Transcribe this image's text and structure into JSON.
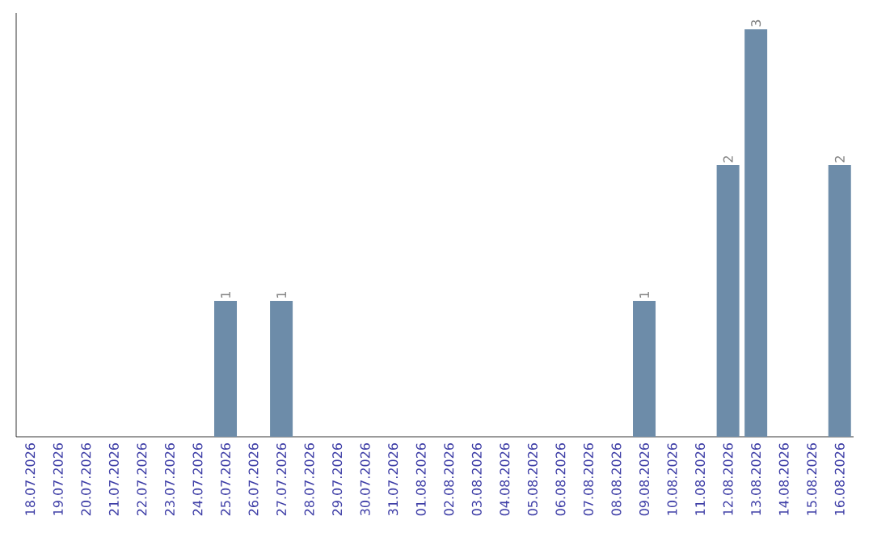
{
  "chart_data": {
    "type": "bar",
    "categories": [
      "18.07.2026",
      "19.07.2026",
      "20.07.2026",
      "21.07.2026",
      "22.07.2026",
      "23.07.2026",
      "24.07.2026",
      "25.07.2026",
      "26.07.2026",
      "27.07.2026",
      "28.07.2026",
      "29.07.2026",
      "30.07.2026",
      "31.07.2026",
      "01.08.2026",
      "02.08.2026",
      "03.08.2026",
      "04.08.2026",
      "05.08.2026",
      "06.08.2026",
      "07.08.2026",
      "08.08.2026",
      "09.08.2026",
      "10.08.2026",
      "11.08.2026",
      "12.08.2026",
      "13.08.2026",
      "14.08.2026",
      "15.08.2026",
      "16.08.2026"
    ],
    "values": [
      0,
      0,
      0,
      0,
      0,
      0,
      0,
      1,
      0,
      1,
      0,
      0,
      0,
      0,
      0,
      0,
      0,
      0,
      0,
      0,
      0,
      0,
      1,
      0,
      0,
      2,
      3,
      0,
      0,
      2
    ],
    "value_labels": [
      null,
      null,
      null,
      null,
      null,
      null,
      null,
      "1",
      null,
      "1",
      null,
      null,
      null,
      null,
      null,
      null,
      null,
      null,
      null,
      null,
      null,
      null,
      "1",
      null,
      null,
      "2",
      "3",
      null,
      null,
      "2"
    ],
    "color": "#6d8ca9"
  }
}
